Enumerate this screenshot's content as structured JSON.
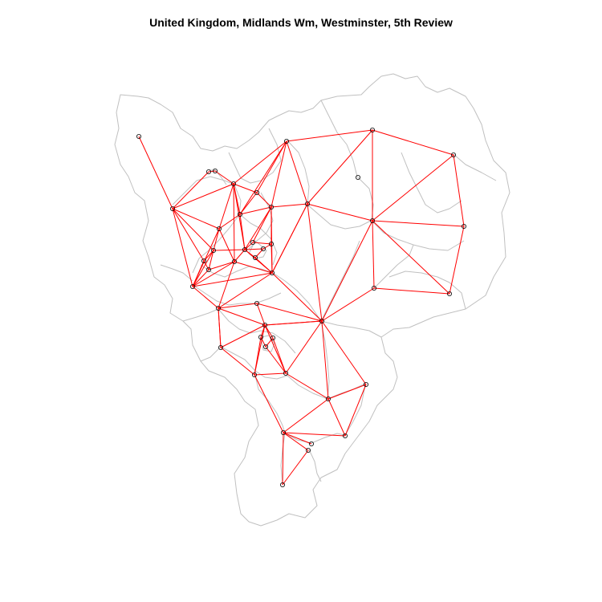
{
  "title": "United Kingdom, Midlands Wm, Westminster, 5th Review",
  "colors": {
    "boundary": "#c0c0c0",
    "edge": "#ff0000",
    "node": "#000000",
    "background": "#ffffff"
  },
  "map": {
    "node_count": 49,
    "edge_count": 120
  }
}
